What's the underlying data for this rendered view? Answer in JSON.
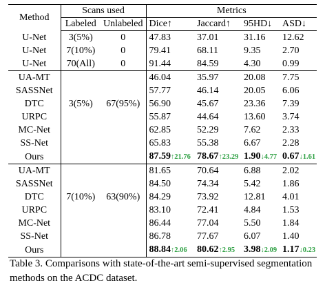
{
  "header": {
    "method": "Method",
    "scans_used": "Scans used",
    "metrics": "Metrics",
    "labeled": "Labeled",
    "unlabeled": "Unlabeled",
    "dice": "Dice↑",
    "jaccard": "Jaccard↑",
    "hd95": "95HD↓",
    "asd": "ASD↓"
  },
  "group1": [
    {
      "method": "U-Net",
      "labeled": "3(5%)",
      "unlabeled": "0",
      "dice": "47.83",
      "jaccard": "37.01",
      "hd95": "31.16",
      "asd": "12.62"
    },
    {
      "method": "U-Net",
      "labeled": "7(10%)",
      "unlabeled": "0",
      "dice": "79.41",
      "jaccard": "68.11",
      "hd95": "9.35",
      "asd": "2.70"
    },
    {
      "method": "U-Net",
      "labeled": "70(All)",
      "unlabeled": "0",
      "dice": "91.44",
      "jaccard": "84.59",
      "hd95": "4.30",
      "asd": "0.99"
    }
  ],
  "group2": {
    "labeled": "3(5%)",
    "unlabeled": "67(95%)",
    "rows": [
      {
        "method": "UA-MT",
        "dice": "46.04",
        "jaccard": "35.97",
        "hd95": "20.08",
        "asd": "7.75"
      },
      {
        "method": "SASSNet",
        "dice": "57.77",
        "jaccard": "46.14",
        "hd95": "20.05",
        "asd": "6.06"
      },
      {
        "method": "DTC",
        "dice": "56.90",
        "jaccard": "45.67",
        "hd95": "23.36",
        "asd": "7.39"
      },
      {
        "method": "URPC",
        "dice": "55.87",
        "jaccard": "44.64",
        "hd95": "13.60",
        "asd": "3.74"
      },
      {
        "method": "MC-Net",
        "dice": "62.85",
        "jaccard": "52.29",
        "hd95": "7.62",
        "asd": "2.33"
      },
      {
        "method": "SS-Net",
        "dice": "65.83",
        "jaccard": "55.38",
        "hd95": "6.67",
        "asd": "2.28"
      }
    ],
    "ours": {
      "method": "Ours",
      "dice": "87.59",
      "dice_delta": "↑21.76",
      "jaccard": "78.67",
      "jaccard_delta": "↑23.29",
      "hd95": "1.90",
      "hd95_delta": "↓4.77",
      "asd": "0.67",
      "asd_delta": "↓1.61"
    }
  },
  "group3": {
    "labeled": "7(10%)",
    "unlabeled": "63(90%)",
    "rows": [
      {
        "method": "UA-MT",
        "dice": "81.65",
        "jaccard": "70.64",
        "hd95": "6.88",
        "asd": "2.02"
      },
      {
        "method": "SASSNet",
        "dice": "84.50",
        "jaccard": "74.34",
        "hd95": "5.42",
        "asd": "1.86"
      },
      {
        "method": "DTC",
        "dice": "84.29",
        "jaccard": "73.92",
        "hd95": "12.81",
        "asd": "4.01"
      },
      {
        "method": "URPC",
        "dice": "83.10",
        "jaccard": "72.41",
        "hd95": "4.84",
        "asd": "1.53"
      },
      {
        "method": "MC-Net",
        "dice": "86.44",
        "jaccard": "77.04",
        "hd95": "5.50",
        "asd": "1.84"
      },
      {
        "method": "SS-Net",
        "dice": "86.78",
        "jaccard": "77.67",
        "hd95": "6.07",
        "asd": "1.40"
      }
    ],
    "ours": {
      "method": "Ours",
      "dice": "88.84",
      "dice_delta": "↑2.06",
      "jaccard": "80.62",
      "jaccard_delta": "↑2.95",
      "hd95": "3.98",
      "hd95_delta": "↓2.09",
      "asd": "1.17",
      "asd_delta": "↓0.23"
    }
  },
  "caption": "Table 3. Comparisons with state-of-the-art semi-supervised segmentation methods on the ACDC dataset.",
  "colors": {
    "delta": "#2ea043"
  }
}
